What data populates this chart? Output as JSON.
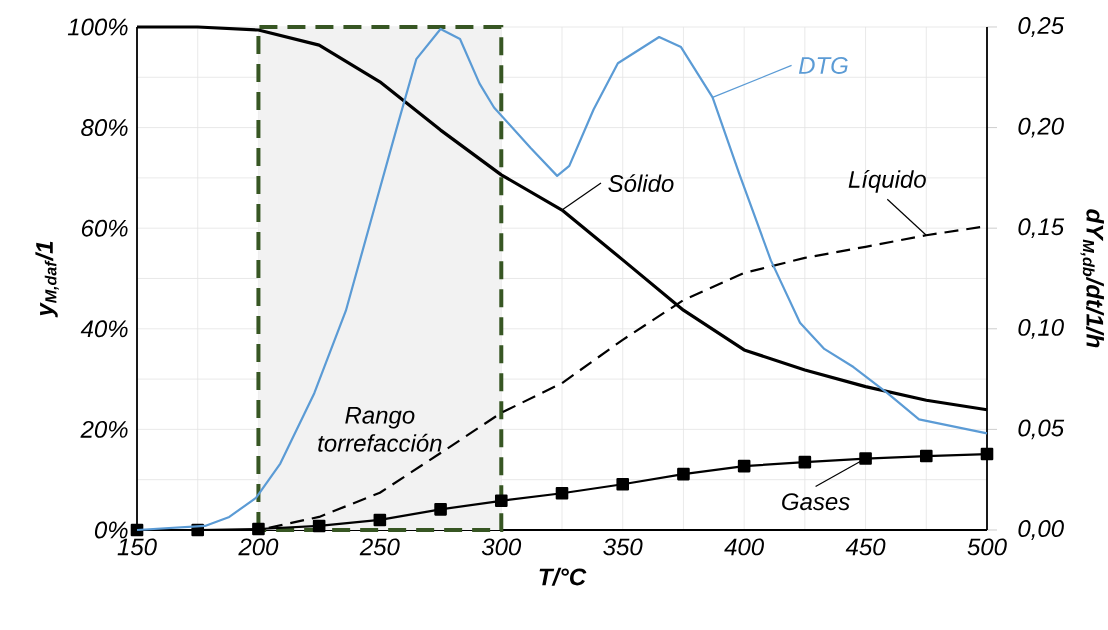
{
  "chart_data": {
    "type": "line",
    "xlabel": "T/°C",
    "ylabel": "y$_{M,daf}$/1",
    "y2label": "dY$_{M,db}$/dt/1/h",
    "x": [
      150,
      175,
      200,
      225,
      250,
      275,
      300,
      325,
      350,
      375,
      400,
      425,
      450,
      475,
      500
    ],
    "series": [
      {
        "name": "Sólido",
        "color": "#000000",
        "marker": "none",
        "line_style": "solid",
        "values": [
          100,
          100,
          99.4,
          96.4,
          89.1,
          79.5,
          70.6,
          63.6,
          53.7,
          43.7,
          35.8,
          31.8,
          28.5,
          25.8,
          23.9
        ]
      },
      {
        "name": "Líquido",
        "color": "#000000",
        "marker": "none",
        "line_style": "dashed",
        "values": [
          0,
          0,
          0,
          2.6,
          7.4,
          15.3,
          23.3,
          29.2,
          37.8,
          45.7,
          51.1,
          54.1,
          56.3,
          58.6,
          60.4
        ]
      },
      {
        "name": "Gases",
        "color": "#000000",
        "marker": "square",
        "line_style": "solid",
        "values": [
          0,
          0,
          0.2,
          0.8,
          2.0,
          4.1,
          5.8,
          7.3,
          9.1,
          11.1,
          12.7,
          13.5,
          14.2,
          14.7,
          15.1
        ]
      },
      {
        "name": "DTG",
        "color": "#5b9bd5",
        "marker": "none",
        "line_style": "solid",
        "axis": "y2",
        "x": [
          150,
          178,
          188,
          199,
          209,
          223,
          236,
          248,
          257,
          265,
          275,
          283,
          291,
          297,
          312,
          323,
          328,
          338,
          348,
          365,
          374,
          387,
          398,
          411,
          423,
          433,
          445,
          459,
          472,
          500
        ],
        "values": [
          0,
          0.002,
          0.0065,
          0.016,
          0.033,
          0.068,
          0.109,
          0.161,
          0.2,
          0.234,
          0.249,
          0.244,
          0.222,
          0.21,
          0.19,
          0.176,
          0.181,
          0.209,
          0.232,
          0.245,
          0.24,
          0.215,
          0.177,
          0.134,
          0.103,
          0.09,
          0.081,
          0.068,
          0.055,
          0.048
        ]
      }
    ],
    "xlim": [
      150,
      500
    ],
    "xticks": [
      150,
      200,
      250,
      300,
      350,
      400,
      450,
      500
    ],
    "ylim": [
      0,
      100
    ],
    "yticks": [
      {
        "value": 0,
        "label": "0%"
      },
      {
        "value": 20,
        "label": "20%"
      },
      {
        "value": 40,
        "label": "40%"
      },
      {
        "value": 60,
        "label": "60%"
      },
      {
        "value": 80,
        "label": "80%"
      },
      {
        "value": 100,
        "label": "100%"
      }
    ],
    "y2lim": [
      0,
      0.25
    ],
    "y2ticks": [
      {
        "value": 0,
        "label": "0,00"
      },
      {
        "value": 0.05,
        "label": "0,05"
      },
      {
        "value": 0.1,
        "label": "0,10"
      },
      {
        "value": 0.15,
        "label": "0,15"
      },
      {
        "value": 0.2,
        "label": "0,20"
      },
      {
        "value": 0.25,
        "label": "0,25"
      }
    ],
    "bands": [
      {
        "axis": "x",
        "from": 200,
        "to": 300,
        "label": "Rango torrefacción",
        "color": "#f2f2f2"
      }
    ],
    "grid": true,
    "legend": "top right"
  }
}
